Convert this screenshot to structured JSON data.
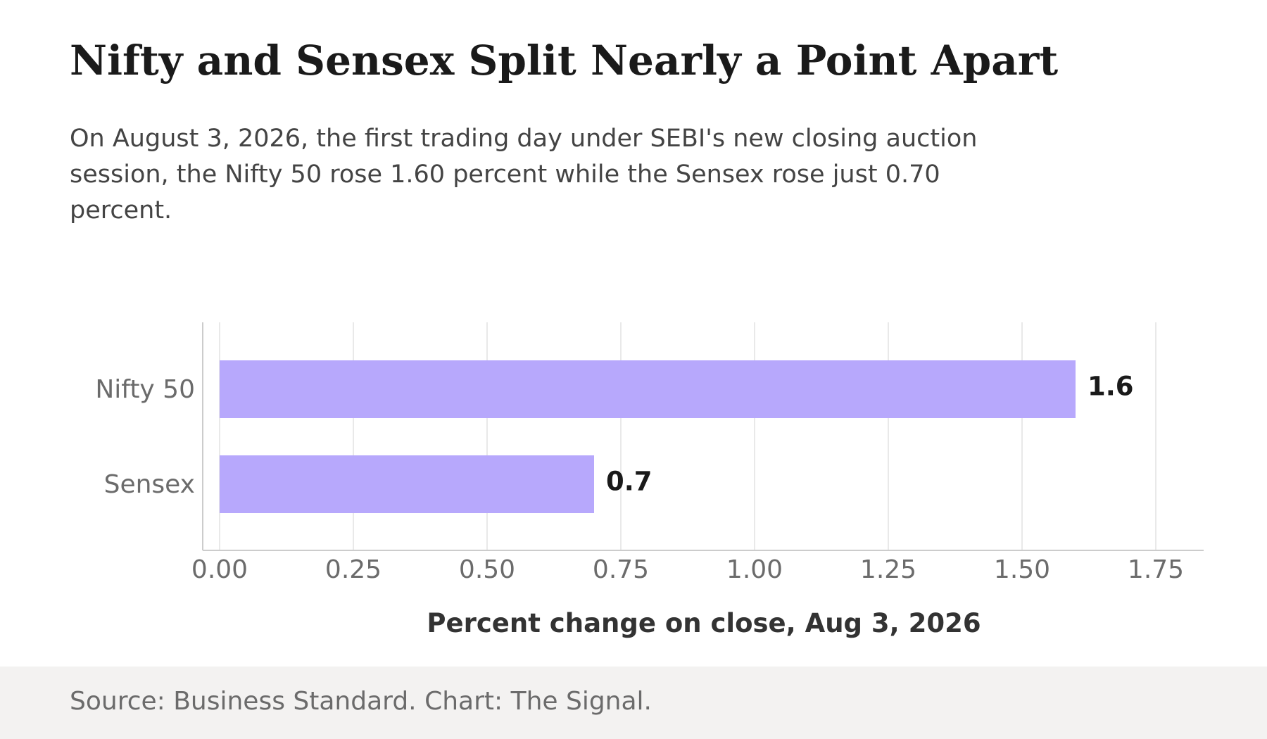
{
  "header": {
    "title": "Nifty and Sensex Split Nearly a Point Apart",
    "subtitle": "On August 3, 2026, the first trading day under SEBI's new closing auction session, the Nifty 50 rose 1.60 percent while the Sensex rose just 0.70 percent."
  },
  "chart_data": {
    "type": "bar",
    "orientation": "horizontal",
    "categories": [
      "Nifty 50",
      "Sensex"
    ],
    "values": [
      1.6,
      0.7
    ],
    "value_labels": [
      "1.6",
      "0.7"
    ],
    "xlabel": "Percent change on close, Aug 3, 2026",
    "xlim": [
      0,
      1.75
    ],
    "xticks": [
      "0.00",
      "0.25",
      "0.50",
      "0.75",
      "1.00",
      "1.25",
      "1.50",
      "1.75"
    ],
    "grid": "vertical",
    "bar_color": "#b7a8fc"
  },
  "footer": {
    "source": "Source: Business Standard. Chart: The Signal."
  }
}
